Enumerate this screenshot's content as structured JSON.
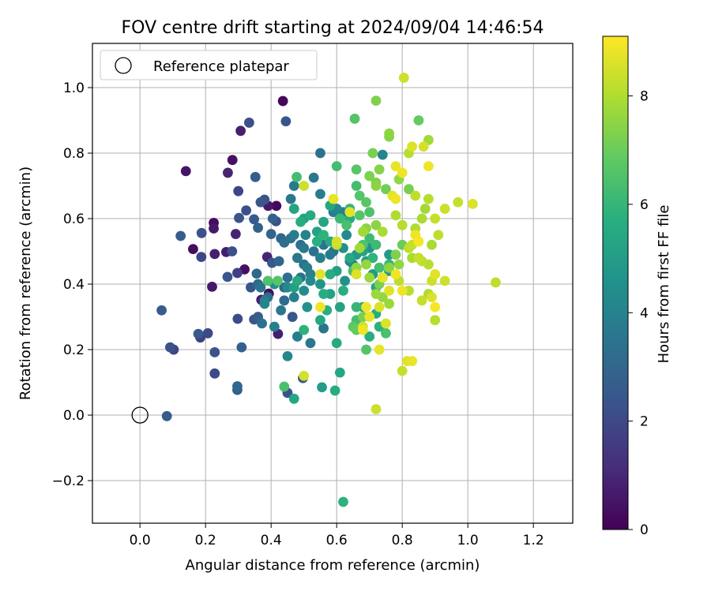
{
  "chart_data": {
    "type": "scatter",
    "title": "FOV centre drift starting at 2024/09/04 14:46:54",
    "xlabel": "Angular distance from reference (arcmin)",
    "ylabel": "Rotation from reference (arcmin)",
    "xlim": [
      -0.145,
      1.32
    ],
    "ylim": [
      -0.33,
      1.135
    ],
    "xticks": [
      0.0,
      0.2,
      0.4,
      0.6,
      0.8,
      1.0,
      1.2
    ],
    "xtick_labels": [
      "0.0",
      "0.2",
      "0.4",
      "0.6",
      "0.8",
      "1.0",
      "1.2"
    ],
    "yticks": [
      -0.2,
      0.0,
      0.2,
      0.4,
      0.6,
      0.8,
      1.0
    ],
    "ytick_labels": [
      "−0.2",
      "0.0",
      "0.2",
      "0.4",
      "0.6",
      "0.8",
      "1.0"
    ],
    "grid": true,
    "legend": {
      "location": "upper-left",
      "entries": [
        "Reference platepar"
      ]
    },
    "reference_point": {
      "x": 0.0,
      "y": 0.0
    },
    "colorbar": {
      "label": "Hours from first FF file",
      "colormap": "viridis",
      "range": [
        0,
        9.1
      ],
      "ticks": [
        0,
        2,
        4,
        6,
        8
      ],
      "tick_labels": [
        "0",
        "2",
        "4",
        "6",
        "8"
      ]
    },
    "points": [
      [
        0.436,
        0.959,
        0.2
      ],
      [
        0.14,
        0.745,
        0.5
      ],
      [
        0.282,
        0.779,
        0.4
      ],
      [
        0.307,
        0.868,
        0.8
      ],
      [
        0.268,
        0.74,
        0.9
      ],
      [
        0.225,
        0.587,
        0.3
      ],
      [
        0.225,
        0.57,
        0.6
      ],
      [
        0.162,
        0.507,
        0.3
      ],
      [
        0.228,
        0.492,
        0.8
      ],
      [
        0.22,
        0.392,
        0.6
      ],
      [
        0.263,
        0.498,
        0.7
      ],
      [
        0.292,
        0.553,
        0.9
      ],
      [
        0.416,
        0.639,
        0.2
      ],
      [
        0.391,
        0.639,
        0.6
      ],
      [
        0.388,
        0.483,
        0.9
      ],
      [
        0.37,
        0.352,
        0.7
      ],
      [
        0.393,
        0.371,
        0.3
      ],
      [
        0.421,
        0.248,
        0.8
      ],
      [
        0.319,
        0.445,
        0.4
      ],
      [
        0.333,
        0.893,
        2.2
      ],
      [
        0.445,
        0.897,
        2.4
      ],
      [
        0.3,
        0.684,
        1.9
      ],
      [
        0.352,
        0.727,
        2.7
      ],
      [
        0.188,
        0.556,
        2.2
      ],
      [
        0.124,
        0.547,
        2.6
      ],
      [
        0.187,
        0.483,
        1.9
      ],
      [
        0.281,
        0.5,
        2.2
      ],
      [
        0.267,
        0.422,
        2.4
      ],
      [
        0.297,
        0.434,
        1.7
      ],
      [
        0.298,
        0.294,
        2.1
      ],
      [
        0.31,
        0.207,
        2.8
      ],
      [
        0.228,
        0.192,
        2.3
      ],
      [
        0.228,
        0.127,
        2.0
      ],
      [
        0.297,
        0.088,
        3.0
      ],
      [
        0.297,
        0.077,
        2.7
      ],
      [
        0.066,
        0.32,
        2.6
      ],
      [
        0.178,
        0.248,
        2.6
      ],
      [
        0.184,
        0.237,
        1.7
      ],
      [
        0.207,
        0.25,
        2.0
      ],
      [
        0.092,
        0.207,
        2.3
      ],
      [
        0.103,
        0.2,
        1.9
      ],
      [
        0.082,
        -0.003,
        2.6
      ],
      [
        0.302,
        0.602,
        2.4
      ],
      [
        0.324,
        0.625,
        2.2
      ],
      [
        0.348,
        0.598,
        2.6
      ],
      [
        0.36,
        0.572,
        2.8
      ],
      [
        0.368,
        0.65,
        2.5
      ],
      [
        0.38,
        0.658,
        2.3
      ],
      [
        0.405,
        0.6,
        2.8
      ],
      [
        0.415,
        0.592,
        2.2
      ],
      [
        0.4,
        0.553,
        2.9
      ],
      [
        0.43,
        0.54,
        3.0
      ],
      [
        0.44,
        0.527,
        3.2
      ],
      [
        0.424,
        0.47,
        3.0
      ],
      [
        0.403,
        0.465,
        2.5
      ],
      [
        0.356,
        0.432,
        3.1
      ],
      [
        0.338,
        0.39,
        2.4
      ],
      [
        0.36,
        0.3,
        2.7
      ],
      [
        0.348,
        0.292,
        2.4
      ],
      [
        0.372,
        0.28,
        3.3
      ],
      [
        0.44,
        0.39,
        2.9
      ],
      [
        0.465,
        0.3,
        2.5
      ],
      [
        0.45,
        0.068,
        2.3
      ],
      [
        0.497,
        0.113,
        2.4
      ],
      [
        0.36,
        0.4,
        3.1
      ],
      [
        0.368,
        0.39,
        3.5
      ],
      [
        0.38,
        0.35,
        3.8
      ],
      [
        0.39,
        0.36,
        3.2
      ],
      [
        0.43,
        0.32,
        3.6
      ],
      [
        0.44,
        0.35,
        3.2
      ],
      [
        0.47,
        0.36,
        3.9
      ],
      [
        0.49,
        0.42,
        3.4
      ],
      [
        0.45,
        0.42,
        3.3
      ],
      [
        0.46,
        0.54,
        3.4
      ],
      [
        0.47,
        0.55,
        3.8
      ],
      [
        0.49,
        0.52,
        3.3
      ],
      [
        0.5,
        0.51,
        3.7
      ],
      [
        0.505,
        0.55,
        4.0
      ],
      [
        0.48,
        0.48,
        3.6
      ],
      [
        0.5,
        0.46,
        3.5
      ],
      [
        0.51,
        0.45,
        3.9
      ],
      [
        0.52,
        0.43,
        4.0
      ],
      [
        0.53,
        0.5,
        3.4
      ],
      [
        0.55,
        0.48,
        3.9
      ],
      [
        0.56,
        0.52,
        3.5
      ],
      [
        0.58,
        0.49,
        3.7
      ],
      [
        0.59,
        0.5,
        3.3
      ],
      [
        0.55,
        0.675,
        3.8
      ],
      [
        0.53,
        0.725,
        3.6
      ],
      [
        0.47,
        0.7,
        3.7
      ],
      [
        0.46,
        0.66,
        3.6
      ],
      [
        0.6,
        0.63,
        4.2
      ],
      [
        0.62,
        0.62,
        4.0
      ],
      [
        0.59,
        0.62,
        3.8
      ],
      [
        0.64,
        0.47,
        3.8
      ],
      [
        0.65,
        0.46,
        4.3
      ],
      [
        0.55,
        0.8,
        3.4
      ],
      [
        0.56,
        0.265,
        3.5
      ],
      [
        0.52,
        0.22,
        3.6
      ],
      [
        0.48,
        0.24,
        3.9
      ],
      [
        0.45,
        0.18,
        4.2
      ],
      [
        0.41,
        0.27,
        3.9
      ],
      [
        0.45,
        0.39,
        4.3
      ],
      [
        0.38,
        0.34,
        4.1
      ],
      [
        0.41,
        0.4,
        4.5
      ],
      [
        0.62,
        0.51,
        4.6
      ],
      [
        0.63,
        0.55,
        4.3
      ],
      [
        0.625,
        0.41,
        4.6
      ],
      [
        0.74,
        0.795,
        4.1
      ],
      [
        0.5,
        0.38,
        4.4
      ],
      [
        0.55,
        0.4,
        4.7
      ],
      [
        0.52,
        0.41,
        4.3
      ],
      [
        0.51,
        0.33,
        4.6
      ],
      [
        0.47,
        0.05,
        5.4
      ],
      [
        0.555,
        0.085,
        5.0
      ],
      [
        0.66,
        0.49,
        4.8
      ],
      [
        0.68,
        0.5,
        5.2
      ],
      [
        0.7,
        0.51,
        4.7
      ],
      [
        0.69,
        0.47,
        5.0
      ],
      [
        0.71,
        0.43,
        4.9
      ],
      [
        0.73,
        0.45,
        5.2
      ],
      [
        0.72,
        0.39,
        5.3
      ],
      [
        0.76,
        0.44,
        5.0
      ],
      [
        0.76,
        0.49,
        4.9
      ],
      [
        0.68,
        0.33,
        5.3
      ],
      [
        0.66,
        0.45,
        5.2
      ],
      [
        0.64,
        0.48,
        5.5
      ],
      [
        0.6,
        0.44,
        5.1
      ],
      [
        0.58,
        0.43,
        5.6
      ],
      [
        0.56,
        0.37,
        5.6
      ],
      [
        0.58,
        0.37,
        5.2
      ],
      [
        0.57,
        0.32,
        5.7
      ],
      [
        0.55,
        0.29,
        5.4
      ],
      [
        0.47,
        0.39,
        5.1
      ],
      [
        0.48,
        0.41,
        5.5
      ],
      [
        0.5,
        0.6,
        5.1
      ],
      [
        0.47,
        0.63,
        5.3
      ],
      [
        0.52,
        0.61,
        5.5
      ],
      [
        0.49,
        0.59,
        5.6
      ],
      [
        0.54,
        0.56,
        5.2
      ],
      [
        0.58,
        0.53,
        5.5
      ],
      [
        0.56,
        0.55,
        5.8
      ],
      [
        0.54,
        0.53,
        5.7
      ],
      [
        0.56,
        0.59,
        5.3
      ],
      [
        0.58,
        0.64,
        5.4
      ],
      [
        0.64,
        0.6,
        5.6
      ],
      [
        0.62,
        0.38,
        5.7
      ],
      [
        0.61,
        0.33,
        5.2
      ],
      [
        0.6,
        0.22,
        5.5
      ],
      [
        0.61,
        0.13,
        5.4
      ],
      [
        0.595,
        0.075,
        5.6
      ],
      [
        0.62,
        -0.265,
        5.8
      ],
      [
        0.5,
        0.26,
        5.8
      ],
      [
        0.44,
        0.087,
        6.4
      ],
      [
        0.478,
        0.727,
        6.3
      ],
      [
        0.73,
        0.27,
        5.8
      ],
      [
        0.7,
        0.24,
        5.7
      ],
      [
        0.72,
        0.31,
        5.6
      ],
      [
        0.71,
        0.48,
        5.9
      ],
      [
        0.72,
        0.52,
        6.2
      ],
      [
        0.76,
        0.46,
        6.0
      ],
      [
        0.74,
        0.42,
        6.1
      ],
      [
        0.75,
        0.25,
        6.4
      ],
      [
        0.73,
        0.45,
        6.3
      ],
      [
        0.7,
        0.54,
        6.2
      ],
      [
        0.68,
        0.52,
        6.5
      ],
      [
        0.65,
        0.44,
        6.4
      ],
      [
        0.66,
        0.33,
        6.0
      ],
      [
        0.66,
        0.29,
        6.3
      ],
      [
        0.69,
        0.2,
        6.6
      ],
      [
        0.6,
        0.76,
        6.3
      ],
      [
        0.655,
        0.905,
        6.6
      ],
      [
        0.64,
        0.63,
        6.0
      ],
      [
        0.61,
        0.6,
        6.1
      ],
      [
        0.66,
        0.7,
        6.3
      ],
      [
        0.67,
        0.67,
        6.6
      ],
      [
        0.7,
        0.62,
        6.5
      ],
      [
        0.69,
        0.65,
        6.7
      ],
      [
        0.66,
        0.75,
        6.7
      ],
      [
        0.67,
        0.61,
        6.6
      ],
      [
        0.63,
        0.58,
        6.4
      ],
      [
        0.42,
        0.41,
        6.6
      ],
      [
        0.39,
        0.41,
        6.5
      ],
      [
        0.65,
        0.27,
        6.8
      ],
      [
        0.66,
        0.26,
        6.9
      ],
      [
        0.68,
        0.3,
        7.2
      ],
      [
        0.72,
        0.96,
        7.3
      ],
      [
        0.76,
        0.85,
        7.4
      ],
      [
        0.76,
        0.86,
        7.5
      ],
      [
        0.71,
        0.8,
        7.2
      ],
      [
        0.73,
        0.75,
        7.4
      ],
      [
        0.7,
        0.73,
        7.3
      ],
      [
        0.72,
        0.71,
        7.3
      ],
      [
        0.72,
        0.7,
        7.5
      ],
      [
        0.75,
        0.69,
        7.1
      ],
      [
        0.79,
        0.72,
        7.6
      ],
      [
        0.82,
        0.69,
        7.2
      ],
      [
        0.85,
        0.9,
        6.9
      ],
      [
        0.8,
        0.52,
        7.0
      ],
      [
        0.78,
        0.49,
        7.3
      ],
      [
        0.79,
        0.46,
        7.6
      ],
      [
        0.76,
        0.45,
        7.5
      ],
      [
        0.73,
        0.4,
        7.2
      ],
      [
        0.74,
        0.36,
        7.6
      ],
      [
        0.76,
        0.34,
        7.7
      ],
      [
        0.72,
        0.37,
        7.7
      ],
      [
        0.7,
        0.42,
        7.7
      ],
      [
        0.69,
        0.46,
        7.6
      ],
      [
        0.66,
        0.45,
        7.6
      ],
      [
        0.67,
        0.51,
        7.8
      ],
      [
        0.68,
        0.56,
        7.8
      ],
      [
        0.69,
        0.57,
        7.5
      ],
      [
        0.72,
        0.58,
        7.5
      ],
      [
        0.74,
        0.56,
        7.9
      ],
      [
        0.78,
        0.61,
        8.0
      ],
      [
        0.8,
        0.58,
        8.1
      ],
      [
        0.82,
        0.51,
        8.2
      ],
      [
        0.83,
        0.48,
        7.9
      ],
      [
        0.85,
        0.48,
        8.3
      ],
      [
        0.86,
        0.47,
        8.2
      ],
      [
        0.88,
        0.46,
        8.1
      ],
      [
        0.89,
        0.52,
        7.9
      ],
      [
        0.91,
        0.55,
        8.2
      ],
      [
        0.9,
        0.6,
        8.3
      ],
      [
        0.87,
        0.63,
        7.8
      ],
      [
        0.88,
        0.66,
        8.1
      ],
      [
        0.88,
        0.84,
        7.8
      ],
      [
        0.86,
        0.6,
        7.9
      ],
      [
        0.84,
        0.57,
        8.0
      ],
      [
        0.83,
        0.52,
        8.3
      ],
      [
        0.79,
        0.41,
        8.2
      ],
      [
        0.82,
        0.38,
        8.1
      ],
      [
        0.86,
        0.35,
        8.3
      ],
      [
        0.88,
        0.37,
        8.0
      ],
      [
        0.89,
        0.41,
        8.4
      ],
      [
        0.9,
        0.29,
        8.1
      ],
      [
        0.93,
        0.41,
        8.4
      ],
      [
        0.93,
        0.63,
        8.4
      ],
      [
        0.97,
        0.65,
        8.3
      ],
      [
        0.9,
        0.43,
        8.7
      ],
      [
        0.89,
        0.36,
        8.6
      ],
      [
        0.84,
        0.67,
        8.2
      ],
      [
        0.82,
        0.8,
        8.1
      ],
      [
        0.83,
        0.82,
        8.6
      ],
      [
        0.865,
        0.82,
        8.5
      ],
      [
        0.805,
        1.03,
        8.4
      ],
      [
        1.085,
        0.405,
        8.2
      ],
      [
        1.015,
        0.645,
        8.6
      ],
      [
        0.8,
        0.135,
        8.3
      ],
      [
        0.815,
        0.165,
        8.7
      ],
      [
        0.83,
        0.165,
        8.8
      ],
      [
        0.8,
        0.38,
        8.9
      ],
      [
        0.78,
        0.43,
        8.9
      ],
      [
        0.74,
        0.42,
        8.8
      ],
      [
        0.76,
        0.38,
        8.7
      ],
      [
        0.73,
        0.33,
        8.6
      ],
      [
        0.7,
        0.3,
        8.8
      ],
      [
        0.69,
        0.33,
        8.9
      ],
      [
        0.68,
        0.27,
        8.5
      ],
      [
        0.75,
        0.28,
        8.6
      ],
      [
        0.77,
        0.67,
        8.7
      ],
      [
        0.78,
        0.76,
        8.8
      ],
      [
        0.8,
        0.74,
        8.9
      ],
      [
        0.84,
        0.55,
        8.9
      ],
      [
        0.85,
        0.53,
        9.0
      ],
      [
        0.88,
        0.76,
        8.9
      ],
      [
        0.9,
        0.33,
        9.0
      ],
      [
        0.72,
        0.018,
        8.4
      ],
      [
        0.73,
        0.2,
        8.8
      ],
      [
        0.68,
        0.26,
        8.9
      ],
      [
        0.59,
        0.66,
        8.8
      ],
      [
        0.64,
        0.62,
        8.7
      ],
      [
        0.6,
        0.53,
        8.5
      ],
      [
        0.66,
        0.43,
        8.6
      ],
      [
        0.55,
        0.33,
        8.9
      ],
      [
        0.5,
        0.12,
        8.5
      ],
      [
        0.5,
        0.7,
        8.4
      ],
      [
        0.55,
        0.43,
        8.7
      ],
      [
        0.6,
        0.52,
        8.3
      ],
      [
        0.78,
        0.66,
        8.9
      ]
    ]
  }
}
